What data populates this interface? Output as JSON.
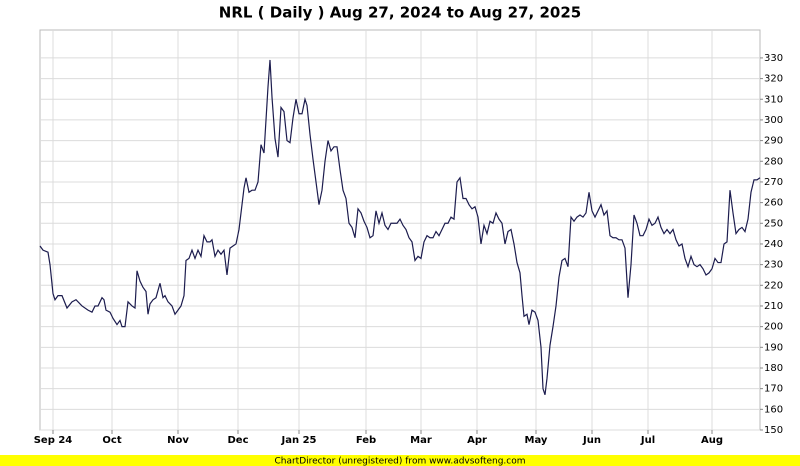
{
  "chart_data": {
    "type": "line",
    "title": "NRL ( Daily ) Aug 27, 2024 to Aug 27, 2025",
    "footer": "ChartDirector (unregistered) from www.advsofteng.com",
    "x": [
      0,
      3,
      8,
      10,
      13,
      15,
      18,
      22,
      27,
      32,
      36,
      42,
      48,
      52,
      55,
      58,
      62,
      64,
      66,
      70,
      73,
      77,
      80,
      82,
      85,
      88,
      92,
      95,
      97,
      100,
      103,
      106,
      108,
      110,
      113,
      116,
      120,
      123,
      125,
      128,
      132,
      135,
      138,
      141,
      144,
      146,
      149,
      152,
      155,
      158,
      161,
      164,
      167,
      170,
      172,
      175,
      178,
      181,
      184,
      187,
      190,
      193,
      196,
      199,
      202,
      204,
      206,
      209,
      212,
      215,
      218,
      221,
      224,
      226,
      228,
      230,
      232,
      235,
      238,
      241,
      244,
      247,
      250,
      253,
      256,
      259,
      262,
      265,
      267,
      270,
      273,
      276,
      279,
      282,
      285,
      288,
      291,
      294,
      297,
      300,
      303,
      306,
      309,
      312,
      315,
      318,
      321,
      324,
      327,
      330,
      333,
      336,
      339,
      342,
      345,
      348,
      351,
      354,
      357,
      360,
      363,
      366,
      369,
      372,
      375,
      378,
      381,
      384,
      387,
      390,
      393,
      396,
      399,
      402,
      405,
      408,
      411,
      414,
      417,
      420,
      423,
      426,
      429,
      432,
      435,
      438,
      441,
      444,
      447,
      450,
      453,
      456,
      459,
      462,
      465,
      468,
      471,
      474,
      477,
      480,
      482,
      484,
      487,
      489,
      492,
      495,
      498,
      501,
      503,
      505,
      507,
      510,
      513,
      516,
      519,
      522,
      525,
      528,
      531,
      534,
      537,
      540,
      543,
      546,
      549,
      552,
      555,
      558,
      561,
      564,
      567,
      570,
      573,
      576,
      579,
      582,
      585,
      588,
      591,
      594,
      597,
      600,
      603,
      606,
      609,
      612,
      615,
      618,
      621,
      624,
      627,
      630,
      633,
      636,
      639,
      642,
      645,
      648,
      651,
      654,
      657,
      660,
      663,
      666,
      669,
      672,
      675,
      678,
      681,
      684,
      687,
      690,
      693,
      696,
      699,
      702,
      705,
      708,
      711,
      714,
      717,
      720
    ],
    "series": [
      {
        "color": "#1c1c4e",
        "values": [
          239,
          237,
          236,
          230,
          216,
          213,
          215,
          215,
          209,
          212,
          213,
          210,
          208,
          207,
          210,
          210,
          214,
          213,
          208,
          207,
          204,
          201,
          203,
          200,
          200,
          212,
          210,
          209,
          227,
          222,
          219,
          217,
          206,
          211,
          213,
          214,
          221,
          214,
          215,
          212,
          210,
          206,
          208,
          210,
          215,
          232,
          233,
          237,
          233,
          237,
          234,
          244,
          241,
          241,
          242,
          234,
          237,
          235,
          237,
          225,
          238,
          239,
          240,
          247,
          259,
          267,
          272,
          265,
          266,
          266,
          270,
          288,
          284,
          300,
          316,
          329,
          311,
          291,
          282,
          306,
          304,
          290,
          289,
          301,
          310,
          303,
          303,
          310,
          307,
          293,
          281,
          270,
          259,
          266,
          280,
          290,
          285,
          287,
          287,
          276,
          266,
          262,
          250,
          248,
          243,
          257,
          255,
          251,
          248,
          243,
          244,
          256,
          250,
          255,
          249,
          247,
          250,
          250,
          250,
          252,
          249,
          247,
          243,
          241,
          232,
          234,
          233,
          241,
          244,
          243,
          243,
          246,
          244,
          247,
          250,
          250,
          253,
          252,
          270,
          272,
          262,
          262,
          259,
          257,
          258,
          253,
          240,
          249,
          245,
          251,
          250,
          255,
          252,
          250,
          240,
          246,
          247,
          240,
          231,
          226,
          215,
          205,
          206,
          201,
          208,
          207,
          203,
          190,
          170,
          167,
          175,
          191,
          200,
          210,
          224,
          232,
          233,
          229,
          253,
          251,
          253,
          254,
          253,
          255,
          265,
          256,
          253,
          256,
          259,
          254,
          256,
          244,
          243,
          243,
          242,
          242,
          238,
          214,
          230,
          254,
          250,
          244,
          244,
          247,
          252,
          249,
          250,
          253,
          248,
          245,
          247,
          245,
          247,
          242,
          239,
          240,
          233,
          229,
          234,
          230,
          229,
          230,
          228,
          225,
          226,
          228,
          233,
          231,
          231,
          240,
          241,
          266,
          255,
          245,
          247,
          248,
          246,
          252,
          265,
          271,
          271,
          272
        ]
      }
    ],
    "xlim": [
      0,
      720
    ],
    "xticks": [
      {
        "value": 13,
        "label": "Sep 24"
      },
      {
        "value": 72,
        "label": "Oct"
      },
      {
        "value": 138,
        "label": "Nov"
      },
      {
        "value": 198,
        "label": "Dec"
      },
      {
        "value": 259,
        "label": "Jan 25"
      },
      {
        "value": 326,
        "label": "Feb"
      },
      {
        "value": 381,
        "label": "Mar"
      },
      {
        "value": 437,
        "label": "Apr"
      },
      {
        "value": 496,
        "label": "May"
      },
      {
        "value": 552,
        "label": "Jun"
      },
      {
        "value": 608,
        "label": "Jul"
      },
      {
        "value": 672,
        "label": "Aug"
      }
    ],
    "ylim": [
      150,
      343.5
    ],
    "yticks": [
      150,
      160,
      170,
      180,
      190,
      200,
      210,
      220,
      230,
      240,
      250,
      260,
      270,
      280,
      290,
      300,
      310,
      320,
      330
    ],
    "grid": true
  }
}
